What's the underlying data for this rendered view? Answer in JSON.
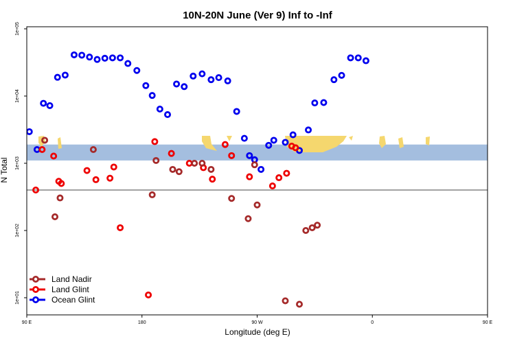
{
  "chart_data": {
    "type": "scatter",
    "title": "10N-20N June (Ver 9)   Inf to -Inf",
    "xlabel": "Longitude (deg E)",
    "ylabel": "N Total",
    "xlim": [
      90,
      450
    ],
    "ylim_log10": [
      1.0,
      5.0
    ],
    "y_scale": "log",
    "x_ticks": [
      {
        "value": 90,
        "label": "90 E"
      },
      {
        "value": 180,
        "label": "180"
      },
      {
        "value": 270,
        "label": "90 W"
      },
      {
        "value": 360,
        "label": "0"
      },
      {
        "value": 450,
        "label": "90 E"
      },
      {
        "value": 540,
        "label": "180"
      }
    ],
    "y_ticks": [
      {
        "value": 10,
        "label": "1e+01"
      },
      {
        "value": 100,
        "label": "1e+02"
      },
      {
        "value": 1000,
        "label": "1e+03"
      },
      {
        "value": 10000,
        "label": "1e+04"
      },
      {
        "value": 100000,
        "label": "1e+05"
      }
    ],
    "reference_line_y": 400,
    "map_band": {
      "y_range": [
        1100,
        1900
      ],
      "land_color": "#f5d76e",
      "ocean_color": "#a4bedf"
    },
    "legend_position": "bottom-left",
    "series": [
      {
        "name": "Ocean Glint",
        "color": "#0000ee",
        "points": [
          [
            92,
            2950
          ],
          [
            98,
            1600
          ],
          [
            103,
            7800
          ],
          [
            108,
            7200
          ],
          [
            114,
            19000
          ],
          [
            120,
            20500
          ],
          [
            127,
            41000
          ],
          [
            133,
            40500
          ],
          [
            139,
            38000
          ],
          [
            145,
            35000
          ],
          [
            151,
            36500
          ],
          [
            157,
            37000
          ],
          [
            163,
            37000
          ],
          [
            169,
            30500
          ],
          [
            176,
            24000
          ],
          [
            183,
            14300
          ],
          [
            188,
            10200
          ],
          [
            194,
            6400
          ],
          [
            200,
            5300
          ],
          [
            207,
            15100
          ],
          [
            213,
            13800
          ],
          [
            220,
            19800
          ],
          [
            227,
            21400
          ],
          [
            234,
            17500
          ],
          [
            240,
            18800
          ],
          [
            247,
            16800
          ],
          [
            254,
            5900
          ],
          [
            260,
            2350
          ],
          [
            264,
            1300
          ],
          [
            268,
            1130
          ],
          [
            273,
            810
          ],
          [
            279,
            1850
          ],
          [
            283,
            2200
          ],
          [
            292,
            2050
          ],
          [
            298,
            2650
          ],
          [
            303,
            1550
          ],
          [
            310,
            3130
          ],
          [
            315,
            7900
          ],
          [
            322,
            8000
          ],
          [
            330,
            17500
          ],
          [
            336,
            20300
          ],
          [
            343,
            37000
          ],
          [
            349,
            37000
          ],
          [
            355,
            33500
          ]
        ]
      },
      {
        "name": "Land Glint",
        "color": "#ee0000",
        "points": [
          [
            97,
            400
          ],
          [
            102,
            1600
          ],
          [
            111,
            1280
          ],
          [
            115,
            540
          ],
          [
            117,
            500
          ],
          [
            137,
            780
          ],
          [
            144,
            570
          ],
          [
            155,
            600
          ],
          [
            158,
            880
          ],
          [
            163,
            110
          ],
          [
            185,
            11
          ],
          [
            190,
            2100
          ],
          [
            203,
            1400
          ],
          [
            217,
            1000
          ],
          [
            228,
            860
          ],
          [
            235,
            580
          ],
          [
            245,
            1900
          ],
          [
            250,
            1300
          ],
          [
            264,
            630
          ],
          [
            282,
            460
          ],
          [
            287,
            610
          ],
          [
            293,
            710
          ],
          [
            297,
            1800
          ],
          [
            300,
            1700
          ]
        ]
      },
      {
        "name": "Land Nadir",
        "color": "#a52a2a",
        "points": [
          [
            104,
            2200
          ],
          [
            112,
            160
          ],
          [
            116,
            305
          ],
          [
            142,
            1600
          ],
          [
            188,
            340
          ],
          [
            191,
            1100
          ],
          [
            204,
            810
          ],
          [
            209,
            750
          ],
          [
            221,
            1000
          ],
          [
            227,
            1000
          ],
          [
            234,
            810
          ],
          [
            250,
            300
          ],
          [
            263,
            150
          ],
          [
            268,
            950
          ],
          [
            270,
            240
          ],
          [
            292,
            9
          ],
          [
            303,
            8
          ],
          [
            308,
            100
          ],
          [
            313,
            110
          ],
          [
            317,
            120
          ]
        ]
      }
    ]
  }
}
